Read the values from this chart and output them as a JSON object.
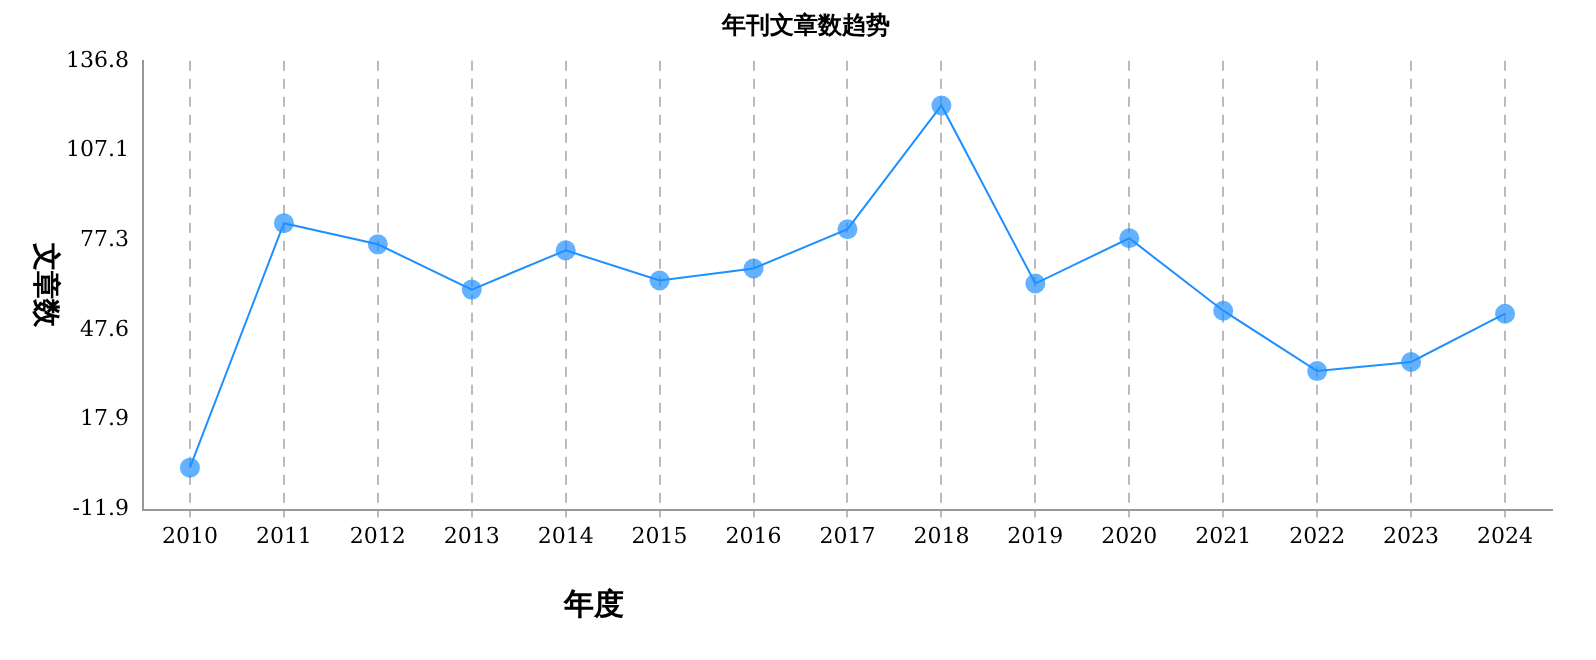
{
  "chart_data": {
    "type": "line",
    "title": "年刊文章数趋势",
    "xlabel": "年度",
    "ylabel": "文章数",
    "categories": [
      "2010",
      "2011",
      "2012",
      "2013",
      "2014",
      "2015",
      "2016",
      "2017",
      "2018",
      "2019",
      "2020",
      "2021",
      "2022",
      "2023",
      "2024"
    ],
    "series": [
      {
        "color": "#1e90ff",
        "values": [
          2,
          83,
          76,
          61,
          74,
          64,
          68,
          81,
          122,
          63,
          78,
          54,
          34,
          37,
          53
        ]
      }
    ],
    "ylim": [
      -11.9,
      136.8
    ],
    "yticks": [
      -11.9,
      17.9,
      47.6,
      77.3,
      107.1,
      136.8
    ],
    "grid": "x",
    "legend": false,
    "marker": "circle",
    "line_style": "solid"
  }
}
